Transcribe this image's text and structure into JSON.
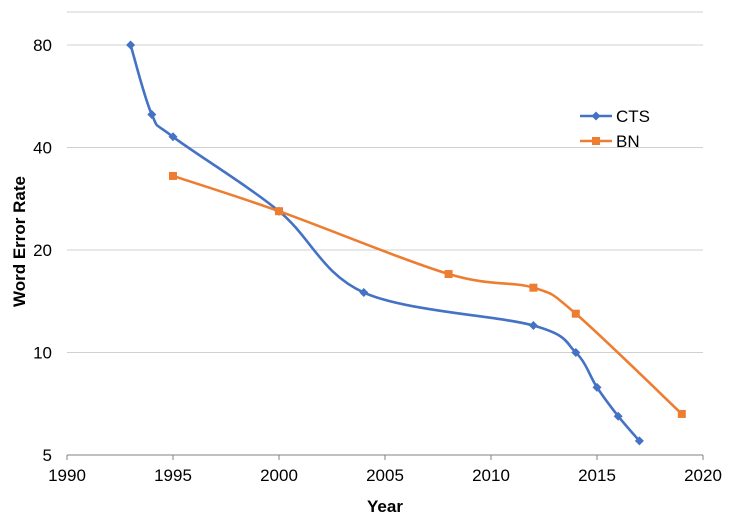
{
  "chart_data": {
    "type": "line",
    "title": "",
    "xlabel": "Year",
    "ylabel": "Word Error Rate",
    "xlim": [
      1990,
      2020
    ],
    "ylim": [
      5,
      100
    ],
    "y_scale": "log2",
    "grid": "horizontal",
    "legend_position": "top-right",
    "x_ticks": [
      1990,
      1995,
      2000,
      2005,
      2010,
      2015,
      2020
    ],
    "x_tick_labels": [
      "1990",
      "1995",
      "2000",
      "2005",
      "2010",
      "2015",
      "2020"
    ],
    "y_ticks": [
      5,
      10,
      20,
      40,
      80
    ],
    "y_tick_labels": [
      "5",
      "10",
      "20",
      "40",
      "80"
    ],
    "series": [
      {
        "name": "CTS",
        "color": "#4472C4",
        "marker": "diamond",
        "x": [
          1993,
          1994,
          1995,
          2000,
          2004,
          2012,
          2014,
          2015,
          2016,
          2017
        ],
        "y": [
          80,
          50,
          43,
          26,
          15,
          12,
          10,
          7.9,
          6.5,
          5.5
        ]
      },
      {
        "name": "BN",
        "color": "#ED7D31",
        "marker": "square",
        "x": [
          1995,
          2000,
          2008,
          2012,
          2014,
          2019
        ],
        "y": [
          33,
          26,
          17,
          15.5,
          13,
          6.6
        ]
      }
    ]
  }
}
